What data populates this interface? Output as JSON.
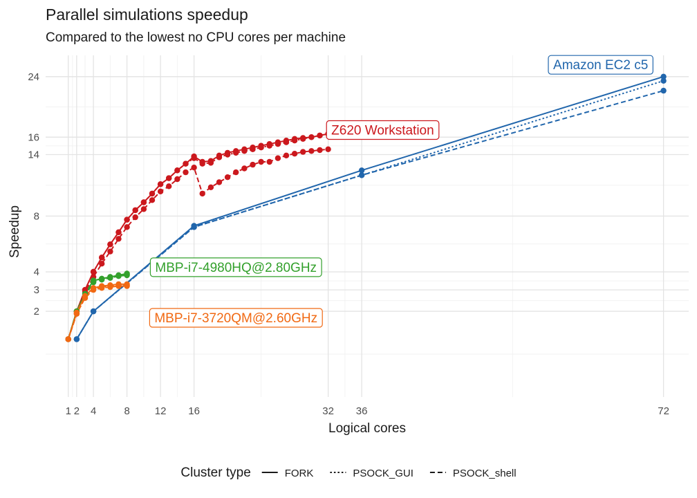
{
  "chart_data": {
    "type": "line",
    "title": "Parallel simulations speedup",
    "subtitle": "Compared to the lowest no CPU cores per machine",
    "xlabel": "Logical cores",
    "ylabel": "Speedup",
    "x_ticks": [
      1,
      2,
      4,
      8,
      12,
      16,
      32,
      36,
      72
    ],
    "y_ticks": [
      2,
      3,
      4,
      8,
      14,
      16,
      24
    ],
    "y_scale": "sqrt",
    "xlim": [
      -1.7,
      75
    ],
    "ylim": [
      0.02,
      27.2
    ],
    "grid": true,
    "legend": {
      "title": "Cluster type",
      "position": "bottom",
      "entries": [
        "FORK",
        "PSOCK_GUI",
        "PSOCK_shell"
      ]
    },
    "colors": {
      "Amazon EC2 c5": "#2166ac",
      "Z620 Workstation": "#cb181d",
      "MBP-i7-4980HQ@2.80GHz": "#33a02c",
      "MBP-i7-3720QM@2.60GHz": "#f16913"
    },
    "label_positions": {
      "Amazon EC2 c5": {
        "x": 64.5,
        "y": 25.8
      },
      "Z620 Workstation": {
        "x": 38.5,
        "y": 16.9
      },
      "MBP-i7-4980HQ@2.80GHz": {
        "x": 21,
        "y": 4.3
      },
      "MBP-i7-3720QM@2.60GHz": {
        "x": 21,
        "y": 1.75
      }
    },
    "series": [
      {
        "machine": "Amazon EC2 c5",
        "cluster": "FORK",
        "x": [
          2,
          4,
          16,
          36,
          72
        ],
        "y": [
          1.0,
          2.0,
          7.2,
          12.3,
          24.0
        ]
      },
      {
        "machine": "Amazon EC2 c5",
        "cluster": "PSOCK_GUI",
        "x": [
          2,
          4,
          16,
          36,
          72
        ],
        "y": [
          1.0,
          2.0,
          7.1,
          11.8,
          23.4
        ]
      },
      {
        "machine": "Amazon EC2 c5",
        "cluster": "PSOCK_shell",
        "x": [
          2,
          4,
          16,
          36,
          72
        ],
        "y": [
          1.0,
          2.0,
          7.1,
          11.8,
          22.0
        ]
      },
      {
        "machine": "Z620 Workstation",
        "cluster": "FORK",
        "x": [
          1,
          2,
          3,
          4,
          5,
          6,
          7,
          8,
          9,
          10,
          11,
          12,
          13,
          14,
          15,
          16,
          17,
          18,
          19,
          20,
          21,
          22,
          23,
          24,
          25,
          26,
          27,
          28,
          29,
          30,
          31,
          32
        ],
        "y": [
          1.0,
          2.0,
          3.0,
          4.0,
          4.9,
          5.8,
          6.7,
          7.7,
          8.5,
          9.2,
          10.0,
          10.9,
          11.5,
          12.3,
          13.0,
          13.8,
          13.2,
          13.3,
          13.9,
          14.2,
          14.4,
          14.6,
          14.8,
          15.0,
          15.2,
          15.4,
          15.6,
          15.8,
          15.9,
          16.0,
          16.2,
          16.4
        ]
      },
      {
        "machine": "Z620 Workstation",
        "cluster": "PSOCK_GUI",
        "x": [
          1,
          2,
          3,
          4,
          5,
          6,
          7,
          8,
          9,
          10,
          11,
          12,
          13,
          14,
          15,
          16,
          17,
          18,
          19,
          20,
          21,
          22,
          23,
          24,
          25,
          26,
          27,
          28,
          29,
          30,
          31,
          32
        ],
        "y": [
          1.0,
          2.0,
          3.0,
          4.0,
          4.9,
          5.8,
          6.7,
          7.7,
          8.5,
          9.2,
          10.0,
          10.9,
          11.5,
          12.3,
          13.0,
          13.6,
          13.0,
          13.1,
          13.7,
          14.0,
          14.2,
          14.4,
          14.6,
          14.8,
          15.0,
          15.2,
          15.4,
          15.6,
          15.8,
          16.0,
          16.2,
          16.4
        ]
      },
      {
        "machine": "Z620 Workstation",
        "cluster": "PSOCK_shell",
        "x": [
          1,
          2,
          3,
          4,
          5,
          6,
          7,
          8,
          9,
          10,
          11,
          12,
          13,
          14,
          15,
          16,
          17,
          18,
          19,
          20,
          21,
          22,
          23,
          24,
          25,
          26,
          27,
          28,
          29,
          30,
          31,
          32
        ],
        "y": [
          1.0,
          1.9,
          2.9,
          3.7,
          4.5,
          5.3,
          6.2,
          7.1,
          7.9,
          8.6,
          9.4,
          10.2,
          10.7,
          11.4,
          12.1,
          12.6,
          10.0,
          10.6,
          11.1,
          11.6,
          12.1,
          12.5,
          12.9,
          13.2,
          13.2,
          13.6,
          13.9,
          14.1,
          14.3,
          14.4,
          14.5,
          14.6
        ]
      },
      {
        "machine": "MBP-i7-4980HQ@2.80GHz",
        "cluster": "FORK",
        "x": [
          1,
          2,
          3,
          4,
          5,
          6,
          7,
          8
        ],
        "y": [
          1.0,
          2.0,
          2.8,
          3.5,
          3.6,
          3.7,
          3.8,
          3.9
        ]
      },
      {
        "machine": "MBP-i7-4980HQ@2.80GHz",
        "cluster": "PSOCK_GUI",
        "x": [
          1,
          2,
          3,
          4,
          5,
          6,
          7,
          8
        ],
        "y": [
          1.0,
          2.0,
          2.8,
          3.5,
          3.6,
          3.7,
          3.8,
          3.85
        ]
      },
      {
        "machine": "MBP-i7-4980HQ@2.80GHz",
        "cluster": "PSOCK_shell",
        "x": [
          1,
          2,
          3,
          4,
          5,
          6,
          7,
          8
        ],
        "y": [
          1.0,
          2.0,
          2.7,
          3.4,
          3.55,
          3.65,
          3.75,
          3.8
        ]
      },
      {
        "machine": "MBP-i7-3720QM@2.60GHz",
        "cluster": "FORK",
        "x": [
          1,
          2,
          3,
          4,
          5,
          6,
          7,
          8
        ],
        "y": [
          1.0,
          1.95,
          2.7,
          3.1,
          3.2,
          3.25,
          3.3,
          3.3
        ]
      },
      {
        "machine": "MBP-i7-3720QM@2.60GHz",
        "cluster": "PSOCK_GUI",
        "x": [
          1,
          2,
          3,
          4,
          5,
          6,
          7,
          8
        ],
        "y": [
          1.0,
          1.9,
          2.6,
          3.05,
          3.15,
          3.2,
          3.25,
          3.25
        ]
      },
      {
        "machine": "MBP-i7-3720QM@2.60GHz",
        "cluster": "PSOCK_shell",
        "x": [
          1,
          2,
          3,
          4,
          5,
          6,
          7,
          8
        ],
        "y": [
          1.0,
          1.9,
          2.6,
          3.0,
          3.1,
          3.15,
          3.2,
          3.2
        ]
      }
    ]
  }
}
